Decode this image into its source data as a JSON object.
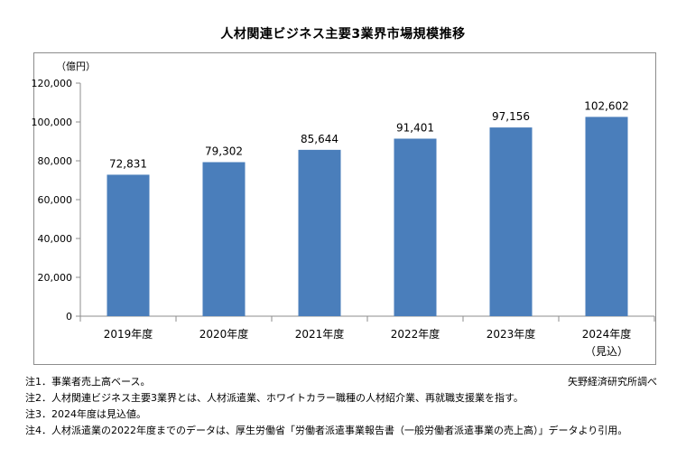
{
  "chart_data": {
    "type": "bar",
    "title": "人材関連ビジネス主要3業界市場規模推移",
    "ylabel": "（億円）",
    "xlabel": "",
    "categories": [
      "2019年度",
      "2020年度",
      "2021年度",
      "2022年度",
      "2023年度",
      "2024年度"
    ],
    "category_sublabels": [
      "",
      "",
      "",
      "",
      "",
      "（見込）"
    ],
    "values": [
      72831,
      79302,
      85644,
      91401,
      97156,
      102602
    ],
    "value_labels": [
      "72,831",
      "79,302",
      "85,644",
      "91,401",
      "97,156",
      "102,602"
    ],
    "yticks": [
      0,
      20000,
      40000,
      60000,
      80000,
      100000,
      120000
    ],
    "ytick_labels": [
      "0",
      "20,000",
      "40,000",
      "60,000",
      "80,000",
      "100,000",
      "120,000"
    ],
    "ylim": [
      0,
      120000
    ],
    "grid": false,
    "bar_color": "#4a7ebb"
  },
  "notes": [
    "注1．事業者売上高ベース。",
    "注2．人材関連ビジネス主要3業界とは、人材派遣業、ホワイトカラー職種の人材紹介業、再就職支援業を指す。",
    "注3．2024年度は見込値。",
    "注4．人材派遣業の2022年度までのデータは、厚生労働省「労働者派遣事業報告書（一般労働者派遣事業の売上高）」データより引用。"
  ],
  "source": "矢野経済研究所調べ"
}
